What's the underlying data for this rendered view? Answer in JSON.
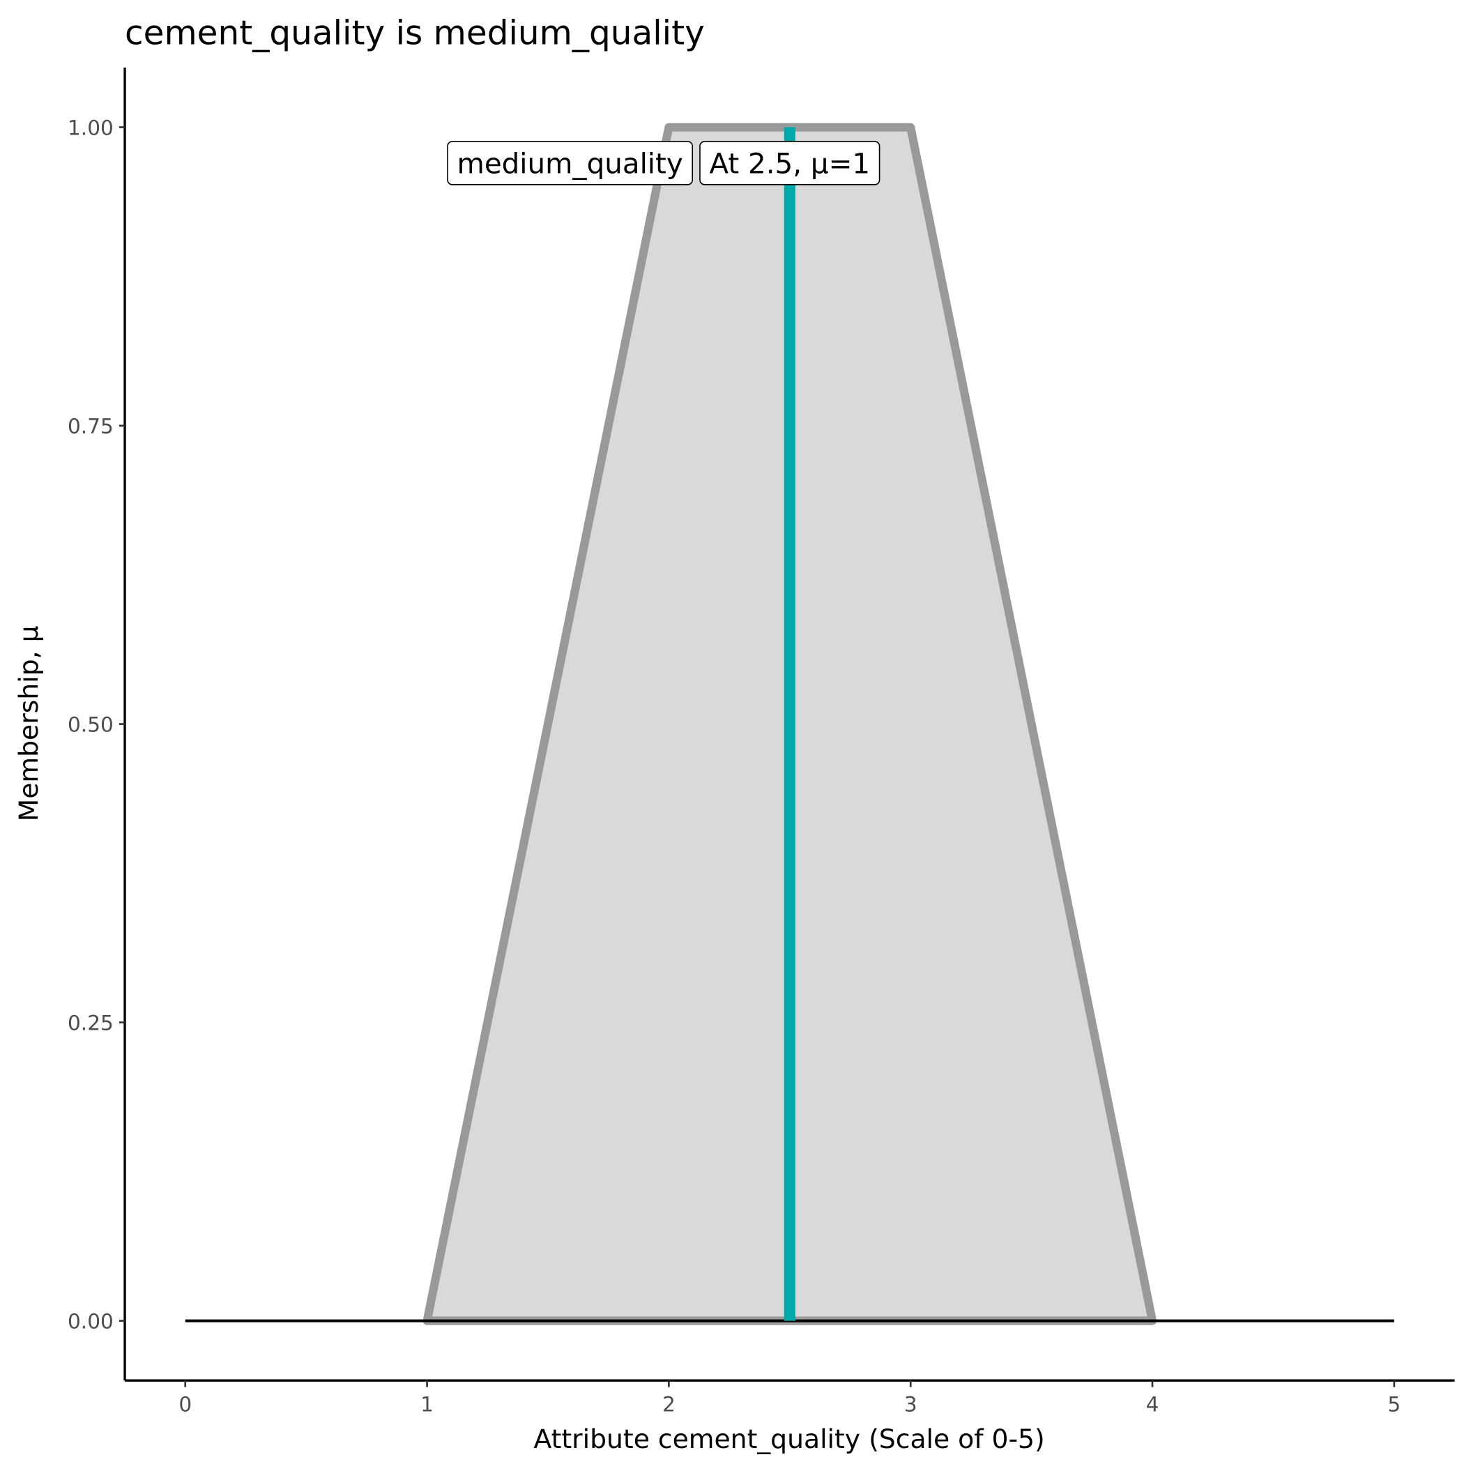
{
  "chart_data": {
    "type": "area",
    "title": "cement_quality is medium_quality",
    "xlabel": "Attribute cement_quality (Scale of 0-5)",
    "ylabel": "Membership, μ",
    "xlim": [
      -0.25,
      5.25
    ],
    "ylim": [
      -0.05,
      1.05
    ],
    "xticks": [
      "0",
      "1",
      "2",
      "3",
      "4",
      "5"
    ],
    "yticks": [
      "0.00",
      "0.25",
      "0.50",
      "0.75",
      "1.00"
    ],
    "grid": false,
    "membership_function": {
      "name": "medium_quality",
      "x": [
        1,
        2,
        3,
        4
      ],
      "y": [
        0,
        1,
        1,
        0
      ],
      "fill": "#d9d9d9",
      "stroke": "#999999"
    },
    "baseline": {
      "x": [
        0,
        5
      ],
      "y": 0,
      "color": "#000000"
    },
    "marker": {
      "x": 2.5,
      "y": [
        0,
        1
      ],
      "color": "#00aaaa"
    },
    "annotations": [
      {
        "text": "medium_quality",
        "x": 1.75,
        "y": 0.97
      },
      {
        "text": "At 2.5, μ=1",
        "x": 2.5,
        "y": 0.97
      }
    ]
  }
}
